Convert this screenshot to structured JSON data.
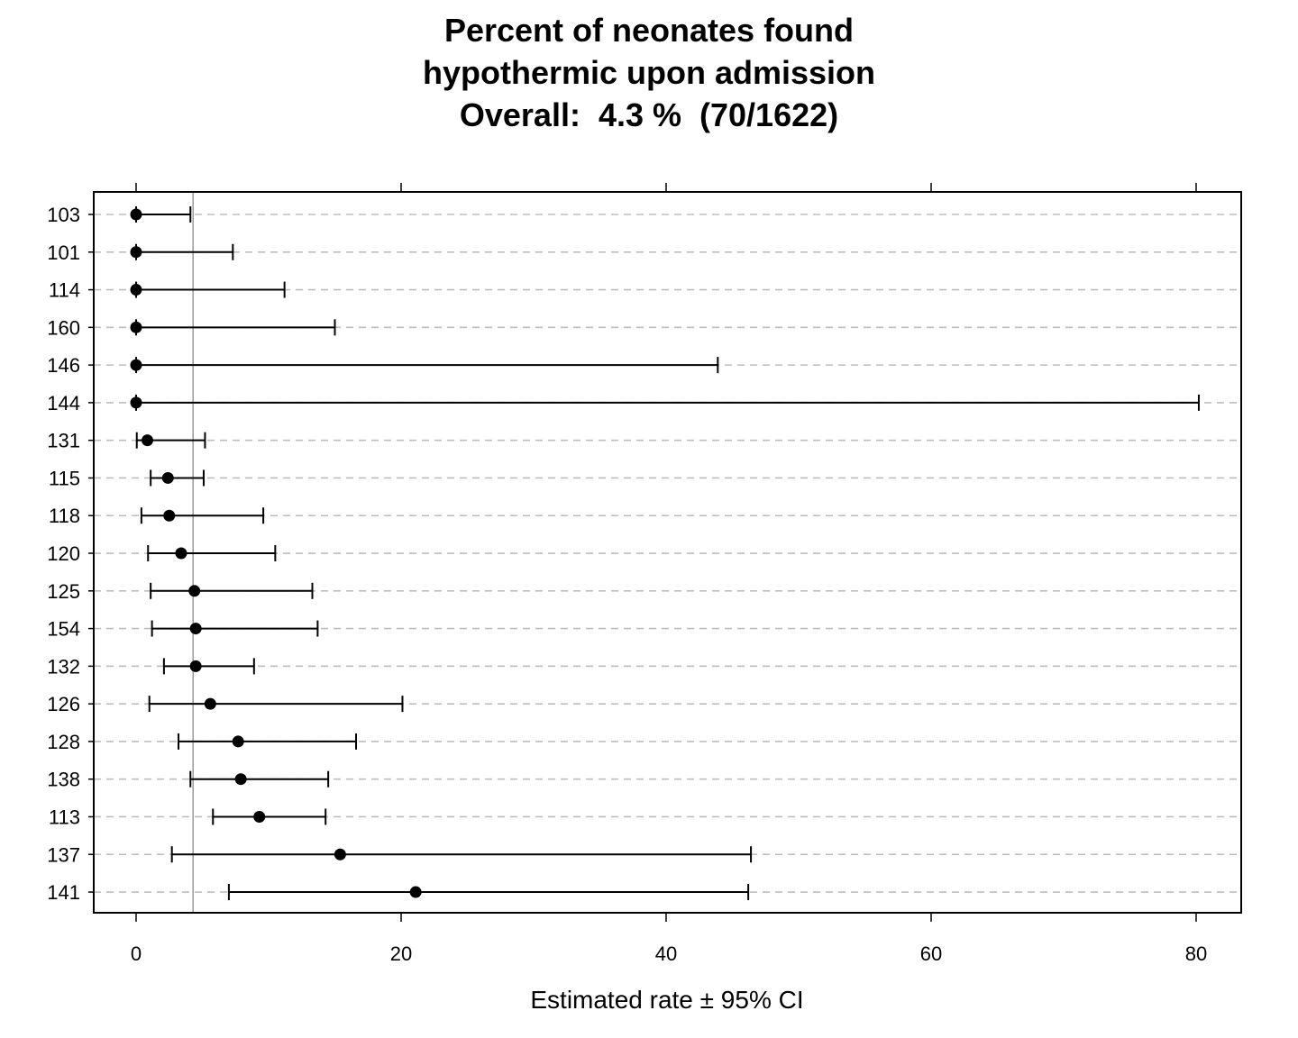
{
  "chart_data": {
    "type": "dot-ci",
    "title_lines": [
      "Percent of neonates found",
      "hypothermic upon admission",
      "Overall:  4.3 %  (70/1622)"
    ],
    "xlabel": "Estimated rate ±  95% CI",
    "ylabel": "",
    "xlim": [
      -3.2,
      83.5
    ],
    "xticks": [
      0,
      20,
      40,
      60,
      80
    ],
    "reference_line": 4.3,
    "grid": "horizontal dashed",
    "categories": [
      "103",
      "101",
      "114",
      "160",
      "146",
      "144",
      "131",
      "115",
      "118",
      "120",
      "125",
      "154",
      "132",
      "126",
      "128",
      "138",
      "113",
      "137",
      "141"
    ],
    "series": [
      {
        "estimate": [
          0,
          0,
          0,
          0,
          0,
          0,
          0.85,
          2.4,
          2.5,
          3.4,
          4.4,
          4.5,
          4.5,
          5.6,
          7.7,
          7.9,
          9.3,
          15.4,
          21.1
        ],
        "lower": [
          0,
          0,
          0,
          0,
          0,
          0,
          0.05,
          1.1,
          0.4,
          0.9,
          1.1,
          1.2,
          2.1,
          1.0,
          3.2,
          4.1,
          5.8,
          2.7,
          7.0
        ],
        "upper": [
          4.1,
          7.3,
          11.2,
          15.0,
          43.9,
          80.2,
          5.2,
          5.1,
          9.6,
          10.5,
          13.3,
          13.7,
          8.9,
          20.1,
          16.6,
          14.5,
          14.3,
          46.4,
          46.2
        ]
      }
    ]
  }
}
